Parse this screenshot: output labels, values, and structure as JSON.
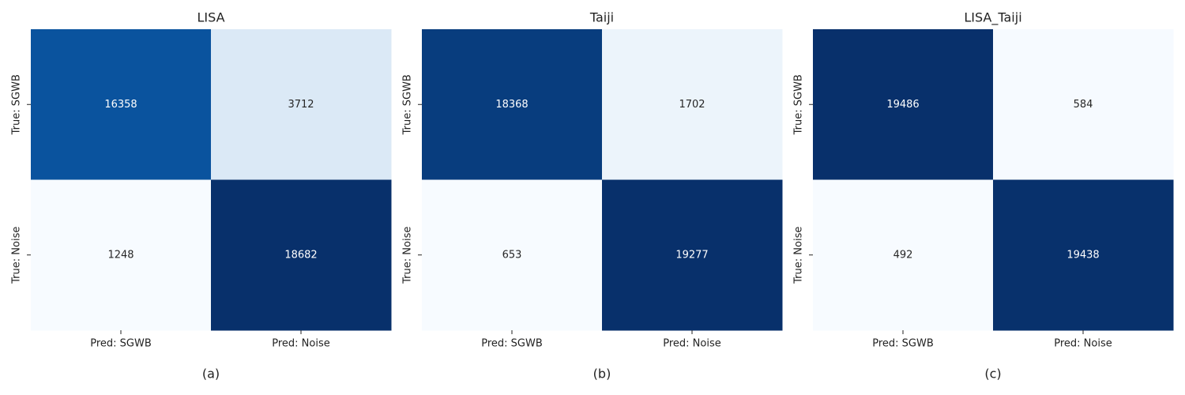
{
  "chart_data": [
    {
      "type": "heatmap",
      "title": "LISA",
      "caption": "(a)",
      "colormap": "Blues",
      "x_categories": [
        "Pred: SGWB",
        "Pred: Noise"
      ],
      "y_categories": [
        "True: SGWB",
        "True: Noise"
      ],
      "values": [
        [
          16358,
          3712
        ],
        [
          1248,
          18682
        ]
      ]
    },
    {
      "type": "heatmap",
      "title": "Taiji",
      "caption": "(b)",
      "colormap": "Blues",
      "x_categories": [
        "Pred: SGWB",
        "Pred: Noise"
      ],
      "y_categories": [
        "True: SGWB",
        "True: Noise"
      ],
      "values": [
        [
          18368,
          1702
        ],
        [
          653,
          19277
        ]
      ]
    },
    {
      "type": "heatmap",
      "title": "LISA_Taiji",
      "caption": "(c)",
      "colormap": "Blues",
      "x_categories": [
        "Pred: SGWB",
        "Pred: Noise"
      ],
      "y_categories": [
        "True: SGWB",
        "True: Noise"
      ],
      "values": [
        [
          19486,
          584
        ],
        [
          492,
          19438
        ]
      ]
    }
  ]
}
